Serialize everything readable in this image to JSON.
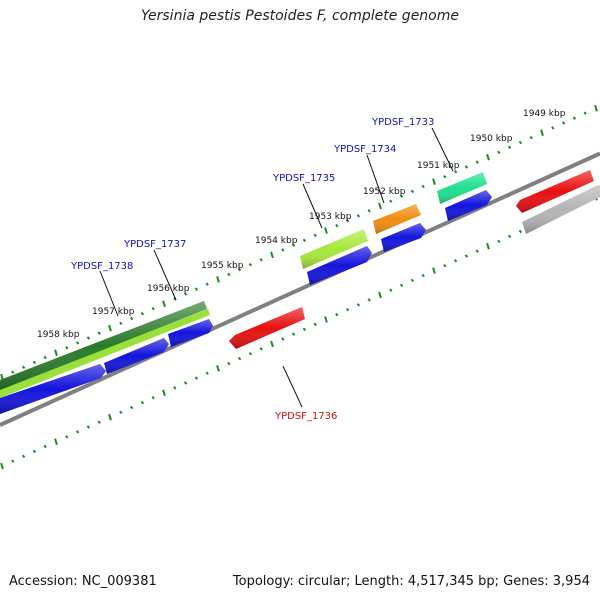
{
  "title": "Yersinia pestis Pestoides F, complete genome",
  "accession": "Accession: NC_009381",
  "summary": "Topology: circular; Length: 4,517,345 bp; Genes: 3,954",
  "colors": {
    "backbone": "#808080",
    "tick": "#1a8a1a",
    "label_plus": "#1010c0",
    "label_minus": "#d01010",
    "leader": "#111111"
  },
  "scale_labels": [
    "1949 kbp",
    "1950 kbp",
    "1951 kbp",
    "1952 kbp",
    "1953 kbp",
    "1954 kbp",
    "1955 kbp",
    "1956 kbp",
    "1957 kbp",
    "1958 kbp"
  ],
  "gene_labels": [
    {
      "name": "YPDSF_1733",
      "color": "blue"
    },
    {
      "name": "YPDSF_1734",
      "color": "blue"
    },
    {
      "name": "YPDSF_1735",
      "color": "blue"
    },
    {
      "name": "YPDSF_1737",
      "color": "blue"
    },
    {
      "name": "YPDSF_1738",
      "color": "blue"
    },
    {
      "name": "YPDSF_1736",
      "color": "red"
    }
  ],
  "features": [
    {
      "id": "f-dkgreen",
      "color": "#2a7a2a"
    },
    {
      "id": "f-ltgreen-long",
      "color": "#9ae03a"
    },
    {
      "id": "f-blue-1738",
      "color": "#1414dc"
    },
    {
      "id": "f-blue-1737a",
      "color": "#1414dc"
    },
    {
      "id": "f-blue-1737b",
      "color": "#1414dc"
    },
    {
      "id": "f-red-1736",
      "color": "#e81010"
    },
    {
      "id": "f-ltgreen-1735",
      "color": "#a6e83a"
    },
    {
      "id": "f-blue-1735",
      "color": "#1414dc"
    },
    {
      "id": "f-orange-1734",
      "color": "#f08c10"
    },
    {
      "id": "f-blue-1734",
      "color": "#1414dc"
    },
    {
      "id": "f-teal-1733",
      "color": "#20e090"
    },
    {
      "id": "f-blue-1733",
      "color": "#1414dc"
    },
    {
      "id": "f-red-right",
      "color": "#e81010"
    },
    {
      "id": "f-gray-right",
      "color": "#b4b4b4"
    }
  ]
}
